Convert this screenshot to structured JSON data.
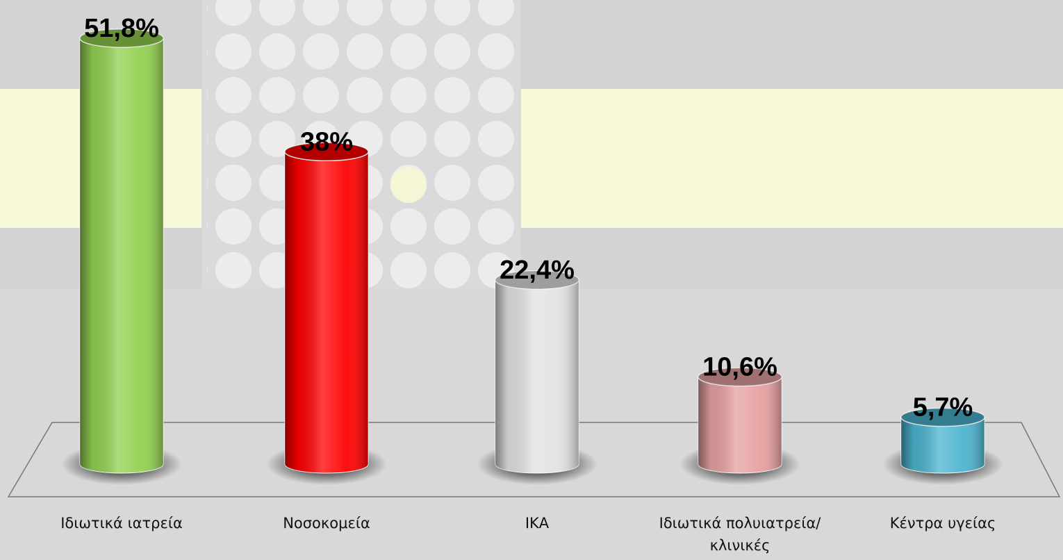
{
  "chart_data": {
    "type": "bar",
    "categories": [
      "Ιδιωτικά ιατρεία",
      "Νοσοκομεία",
      "ΙΚΑ",
      "Ιδιωτικά πολυιατρεία/κλινικές",
      "Κέντρα υγείας"
    ],
    "values": [
      51.8,
      38,
      22.4,
      10.6,
      5.7
    ],
    "value_labels": [
      "51,8%",
      "38%",
      "22,4%",
      "10,6%",
      "5,7%"
    ],
    "colors": [
      "#92d050",
      "#ff0000",
      "#e2e2e2",
      "#e6a0a0",
      "#4bb4cf"
    ]
  }
}
